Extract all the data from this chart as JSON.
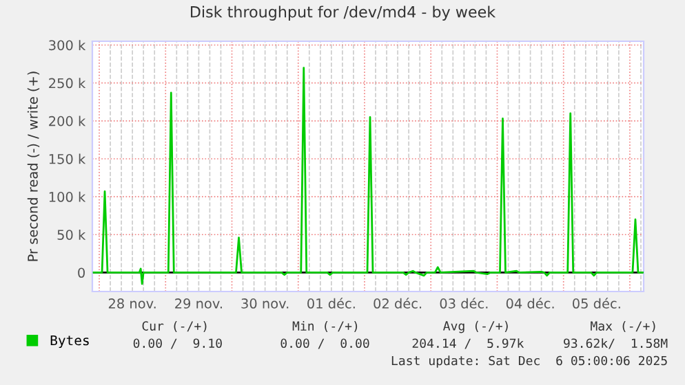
{
  "chart_data": {
    "type": "line",
    "title": "Disk throughput for /dev/md4 - by week",
    "ylabel": "Pr second read (-) / write (+)",
    "xlim": [
      "2025-11-27T21:30",
      "2025-12-06T05:00"
    ],
    "xticks": [
      {
        "value": "2025-11-28T12:00",
        "label": "28 nov."
      },
      {
        "value": "2025-11-29T12:00",
        "label": "29 nov."
      },
      {
        "value": "2025-11-30T12:00",
        "label": "30 nov."
      },
      {
        "value": "2025-12-01T12:00",
        "label": "01 déc."
      },
      {
        "value": "2025-12-02T12:00",
        "label": "02 déc."
      },
      {
        "value": "2025-12-03T12:00",
        "label": "03 déc."
      },
      {
        "value": "2025-12-04T12:00",
        "label": "04 déc."
      },
      {
        "value": "2025-12-05T12:00",
        "label": "05 déc."
      }
    ],
    "ylim": [
      -25000,
      305000
    ],
    "yticks": [
      {
        "value": 0,
        "label": "0"
      },
      {
        "value": 50000,
        "label": "50 k"
      },
      {
        "value": 100000,
        "label": "100 k"
      },
      {
        "value": 150000,
        "label": "150 k"
      },
      {
        "value": 200000,
        "label": "200 k"
      },
      {
        "value": 250000,
        "label": "250 k"
      },
      {
        "value": 300000,
        "label": "300 k"
      }
    ],
    "grid": true,
    "legend": "bottom left",
    "marker": "none",
    "line_style": "solid",
    "ref_lines": [
      {
        "axis": "y",
        "value": 0,
        "color": "#000000"
      }
    ],
    "series": [
      {
        "name": "Bytes",
        "color": "#00cc00",
        "x": [
          "2025-11-27T22:00",
          "2025-11-28T01:00",
          "2025-11-28T02:00",
          "2025-11-28T03:00",
          "2025-11-28T14:30",
          "2025-11-28T15:00",
          "2025-11-28T15:30",
          "2025-11-28T16:00",
          "2025-11-29T01:00",
          "2025-11-29T02:00",
          "2025-11-29T03:00",
          "2025-11-30T01:30",
          "2025-11-30T02:30",
          "2025-11-30T03:30",
          "2025-11-30T18:00",
          "2025-11-30T19:00",
          "2025-11-30T20:00",
          "2025-12-01T01:00",
          "2025-12-01T02:00",
          "2025-12-01T03:00",
          "2025-12-01T10:30",
          "2025-12-01T11:30",
          "2025-12-01T12:30",
          "2025-12-02T01:00",
          "2025-12-02T02:00",
          "2025-12-02T03:00",
          "2025-12-02T14:00",
          "2025-12-02T15:00",
          "2025-12-02T16:00",
          "2025-12-02T17:30",
          "2025-12-02T18:30",
          "2025-12-02T21:30",
          "2025-12-02T22:30",
          "2025-12-03T01:30",
          "2025-12-03T02:30",
          "2025-12-03T03:30",
          "2025-12-03T15:30",
          "2025-12-03T16:30",
          "2025-12-03T20:30",
          "2025-12-03T21:30",
          "2025-12-04T01:00",
          "2025-12-04T02:00",
          "2025-12-04T03:00",
          "2025-12-04T07:00",
          "2025-12-04T08:00",
          "2025-12-04T16:00",
          "2025-12-04T17:00",
          "2025-12-04T18:00",
          "2025-12-04T19:00",
          "2025-12-05T01:30",
          "2025-12-05T02:30",
          "2025-12-05T03:30",
          "2025-12-05T10:00",
          "2025-12-05T11:00",
          "2025-12-05T12:00",
          "2025-12-06T01:00",
          "2025-12-06T02:00",
          "2025-12-06T03:00",
          "2025-12-06T05:00"
        ],
        "values": [
          0,
          0,
          107000,
          0,
          0,
          5000,
          -15000,
          0,
          0,
          237000,
          0,
          0,
          46000,
          0,
          0,
          -3000,
          0,
          0,
          270000,
          0,
          0,
          -3000,
          0,
          0,
          205000,
          0,
          0,
          -3000,
          0,
          2000,
          0,
          -4000,
          0,
          0,
          7000,
          0,
          2000,
          0,
          -2000,
          0,
          0,
          203000,
          0,
          2000,
          0,
          1000,
          0,
          -4000,
          0,
          0,
          210000,
          0,
          0,
          -4000,
          0,
          0,
          70000,
          0,
          0
        ]
      }
    ],
    "annotations": [
      "Cur (-/+)",
      "Min (-/+)",
      "Avg (-/+)",
      "Max (-/+)",
      "0.00 /  9.10",
      "0.00 /  0.00",
      "204.14 /  5.97k",
      "93.62k/  1.58M",
      "Last update: Sat Dec  6 05:00:06 2025"
    ]
  }
}
